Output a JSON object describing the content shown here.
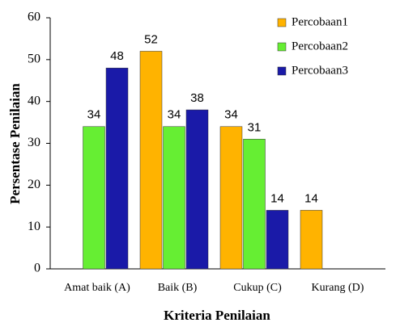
{
  "chart_data": {
    "type": "bar",
    "x_label": "Kriteria Penilaian",
    "y_label": "Persentase Penilaian",
    "categories": [
      "Amat baik (A)",
      "Baik (B)",
      "Cukup (C)",
      "Kurang (D)"
    ],
    "series": [
      {
        "name": "Percobaan1",
        "color": "#ffb300",
        "values": [
          null,
          52,
          34,
          14
        ]
      },
      {
        "name": "Percobaan2",
        "color": "#66ee33",
        "values": [
          34,
          34,
          31,
          null
        ]
      },
      {
        "name": "Percobaan3",
        "color": "#1a1aa8",
        "values": [
          48,
          38,
          14,
          null
        ]
      }
    ],
    "ylim": [
      0,
      60
    ],
    "yticks": [
      0,
      10,
      20,
      30,
      40,
      50,
      60
    ],
    "grid": false,
    "legend": "top-right"
  }
}
